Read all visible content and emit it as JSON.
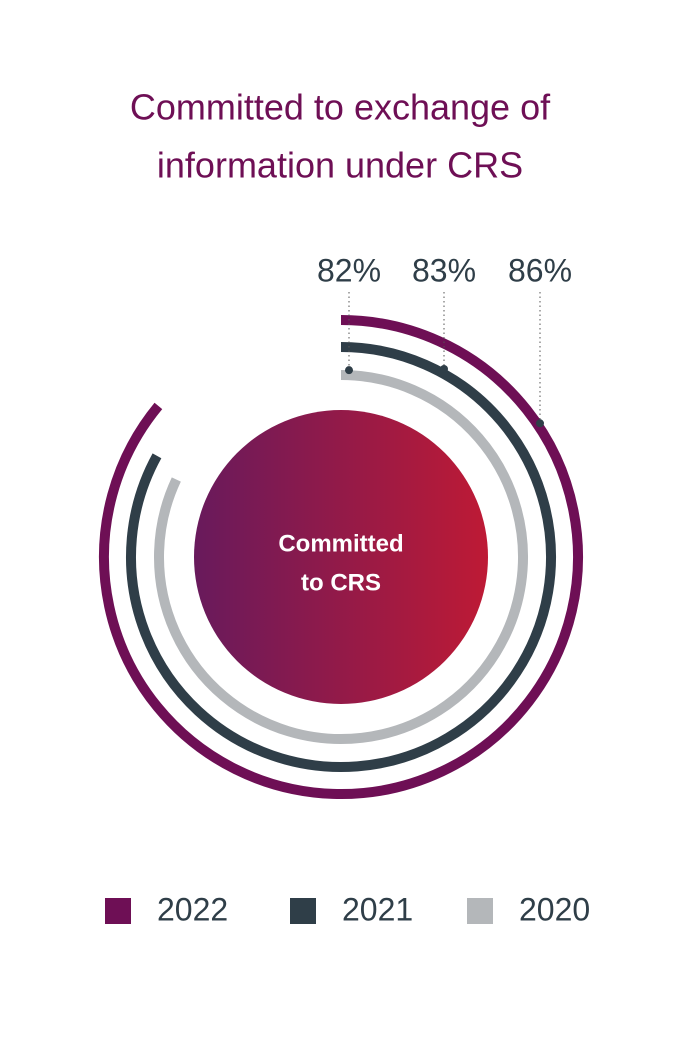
{
  "chart_data": {
    "type": "radial_bar",
    "title": [
      "Committed to exchange of",
      "information under CRS"
    ],
    "center_label": [
      "Committed",
      "to CRS"
    ],
    "ylim": [
      0,
      100
    ],
    "series": [
      {
        "name": "2022",
        "color": "#6e0f55",
        "values": [
          86
        ],
        "value_labels": [
          "86%"
        ]
      },
      {
        "name": "2021",
        "color": "#2f3e48",
        "values": [
          83
        ],
        "value_labels": [
          "83%"
        ]
      },
      {
        "name": "2020",
        "color": "#b4b7ba",
        "values": [
          82
        ],
        "value_labels": [
          "82%"
        ]
      }
    ]
  }
}
